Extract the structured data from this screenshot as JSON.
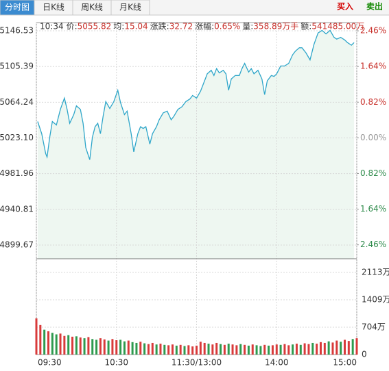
{
  "header": {
    "tabs": [
      "分时图",
      "日K线",
      "周K线",
      "月K线"
    ],
    "active_tab": 0,
    "actions": [
      {
        "label": "买入",
        "color": "#d40000"
      },
      {
        "label": "卖出",
        "color": "#118800"
      }
    ]
  },
  "quote": {
    "time": "10:34",
    "items": [
      {
        "label": "价:",
        "value": "5055.82"
      },
      {
        "label": "均:",
        "value": "15.04"
      },
      {
        "label": "涨跌:",
        "value": "32.72"
      },
      {
        "label": "涨幅:",
        "value": "0.65%"
      },
      {
        "label": "量:",
        "value": "358.89万手"
      },
      {
        "label": "额:",
        "value": "541485.00万"
      }
    ]
  },
  "chart_data": [
    {
      "type": "line",
      "x": [
        1,
        4,
        7,
        8,
        10,
        12,
        15,
        18,
        21,
        23,
        25,
        28,
        30,
        33,
        35,
        37,
        40,
        42,
        44,
        46,
        48,
        50,
        52,
        55,
        58,
        61,
        63,
        66,
        68,
        71,
        73,
        76,
        78,
        80,
        82,
        85,
        87,
        90,
        92,
        95,
        98,
        101,
        103,
        106,
        109,
        112,
        115,
        117,
        120,
        123,
        126,
        128,
        131,
        133,
        135,
        137,
        140,
        142,
        144,
        146,
        149,
        152,
        154,
        156,
        159,
        161,
        163,
        166,
        169,
        171,
        173,
        176,
        178,
        180,
        183,
        186,
        189,
        192,
        194,
        197,
        199,
        202,
        205,
        208,
        211,
        214,
        217,
        220,
        223,
        225,
        228,
        231,
        233,
        236,
        238
      ],
      "series": [
        {
          "color": "#2ea6c9",
          "values": [
            5042,
            5028,
            5005,
            5001,
            5024,
            5042,
            5038,
            5056,
            5069,
            5056,
            5040,
            5050,
            5060,
            5056,
            5040,
            5012,
            4998,
            5024,
            5036,
            5040,
            5028,
            5048,
            5065,
            5057,
            5065,
            5078,
            5064,
            5050,
            5054,
            5028,
            5007,
            5028,
            5036,
            5034,
            5036,
            5016,
            5028,
            5036,
            5044,
            5052,
            5054,
            5044,
            5048,
            5056,
            5059,
            5065,
            5068,
            5072,
            5069,
            5077,
            5089,
            5097,
            5101,
            5095,
            5103,
            5098,
            5101,
            5097,
            5078,
            5091,
            5095,
            5095,
            5103,
            5109,
            5099,
            5103,
            5097,
            5101,
            5091,
            5073,
            5089,
            5095,
            5094,
            5097,
            5106,
            5106,
            5109,
            5119,
            5123,
            5127,
            5127,
            5121,
            5113,
            5131,
            5144,
            5147,
            5143,
            5147,
            5139,
            5137,
            5139,
            5136,
            5133,
            5130,
            5133
          ]
        }
      ],
      "area_color": "#eef7f1",
      "xlim": [
        0,
        240
      ],
      "ylim": [
        4883.9,
        5156.0
      ],
      "yticks": [
        4899.67,
        4940.81,
        4981.96,
        {
          "value": 5023.1,
          "label": "5023.10"
        },
        5064.24,
        5105.39,
        5146.53
      ],
      "y2lim": [
        -2.78,
        2.65
      ],
      "y2ticks": [
        {
          "value": -2.46,
          "label": "2.46%"
        },
        {
          "value": -1.64,
          "label": "1.64%"
        },
        {
          "value": -0.82,
          "label": "0.82%"
        },
        {
          "value": 0,
          "label": "0.00%"
        },
        {
          "value": 0.82,
          "label": "0.82%"
        },
        {
          "value": 1.64,
          "label": "1.64%"
        },
        {
          "value": 2.46,
          "label": "2.46%"
        }
      ],
      "up_color": "#c8302a",
      "down_color": "#2d8a4a",
      "flat_color": "#999999",
      "grid": true
    },
    {
      "type": "bar",
      "x": [
        0,
        3,
        6,
        9,
        12,
        15,
        18,
        21,
        24,
        27,
        30,
        33,
        36,
        39,
        42,
        45,
        48,
        51,
        54,
        57,
        60,
        63,
        66,
        69,
        72,
        75,
        78,
        81,
        84,
        87,
        90,
        93,
        96,
        99,
        102,
        105,
        108,
        111,
        114,
        117,
        120,
        123,
        126,
        129,
        132,
        135,
        138,
        141,
        144,
        147,
        150,
        153,
        156,
        159,
        162,
        165,
        168,
        171,
        174,
        177,
        180,
        183,
        186,
        189,
        192,
        195,
        198,
        201,
        204,
        207,
        210,
        213,
        216,
        219,
        222,
        225,
        228,
        231,
        234,
        237,
        240
      ],
      "values": [
        930,
        760,
        640,
        600,
        560,
        520,
        540,
        480,
        500,
        460,
        470,
        440,
        420,
        450,
        400,
        380,
        420,
        390,
        360,
        400,
        370,
        380,
        340,
        360,
        320,
        300,
        330,
        290,
        270,
        300,
        260,
        280,
        250,
        240,
        260,
        230,
        250,
        220,
        240,
        210,
        230,
        330,
        300,
        280,
        260,
        300,
        270,
        250,
        280,
        260,
        240,
        270,
        250,
        230,
        260,
        240,
        220,
        250,
        230,
        240,
        260,
        250,
        270,
        240,
        260,
        280,
        250,
        290,
        270,
        300,
        280,
        320,
        300,
        340,
        310,
        360,
        330,
        380,
        350,
        400,
        420
      ],
      "colors": [
        "#d83a3a",
        "#d83a3a",
        "#2e9a4e",
        "#d83a3a",
        "#2e9a4e",
        "#2e9a4e",
        "#d83a3a",
        "#d83a3a",
        "#2e9a4e",
        "#d83a3a",
        "#2e9a4e",
        "#d83a3a",
        "#2e9a4e",
        "#d83a3a",
        "#2e9a4e",
        "#2e9a4e",
        "#d83a3a",
        "#d83a3a",
        "#2e9a4e",
        "#d83a3a",
        "#d83a3a",
        "#2e9a4e",
        "#2e9a4e",
        "#d83a3a",
        "#2e9a4e",
        "#2e9a4e",
        "#d83a3a",
        "#2e9a4e",
        "#d83a3a",
        "#d83a3a",
        "#2e9a4e",
        "#d83a3a",
        "#2e9a4e",
        "#d83a3a",
        "#d83a3a",
        "#2e9a4e",
        "#d83a3a",
        "#2e9a4e",
        "#d83a3a",
        "#d83a3a",
        "#d83a3a",
        "#d83a3a",
        "#d83a3a",
        "#2e9a4e",
        "#d83a3a",
        "#d83a3a",
        "#2e9a4e",
        "#d83a3a",
        "#2e9a4e",
        "#d83a3a",
        "#d83a3a",
        "#2e9a4e",
        "#d83a3a",
        "#2e9a4e",
        "#d83a3a",
        "#2e9a4e",
        "#2e9a4e",
        "#d83a3a",
        "#2e9a4e",
        "#d83a3a",
        "#d83a3a",
        "#2e9a4e",
        "#d83a3a",
        "#d83a3a",
        "#2e9a4e",
        "#d83a3a",
        "#2e9a4e",
        "#d83a3a",
        "#d83a3a",
        "#2e9a4e",
        "#d83a3a",
        "#d83a3a",
        "#d83a3a",
        "#2e9a4e",
        "#d83a3a",
        "#d83a3a",
        "#2e9a4e",
        "#d83a3a",
        "#d83a3a",
        "#2e9a4e",
        "#d83a3a"
      ],
      "xlim": [
        0,
        240
      ],
      "xticks": [
        {
          "value": 0,
          "label": "09:30"
        },
        {
          "value": 60,
          "label": "10:30"
        },
        {
          "value": 120,
          "label": "11:30/13:00"
        },
        {
          "value": 180,
          "label": "14:00"
        },
        {
          "value": 240,
          "label": "15:00"
        }
      ],
      "ylim": [
        0,
        2465
      ],
      "yticks": [
        0,
        {
          "value": 704,
          "label": "704万"
        },
        {
          "value": 1409,
          "label": "1409万"
        },
        {
          "value": 2113,
          "label": "2113万"
        }
      ],
      "grid": true
    }
  ]
}
